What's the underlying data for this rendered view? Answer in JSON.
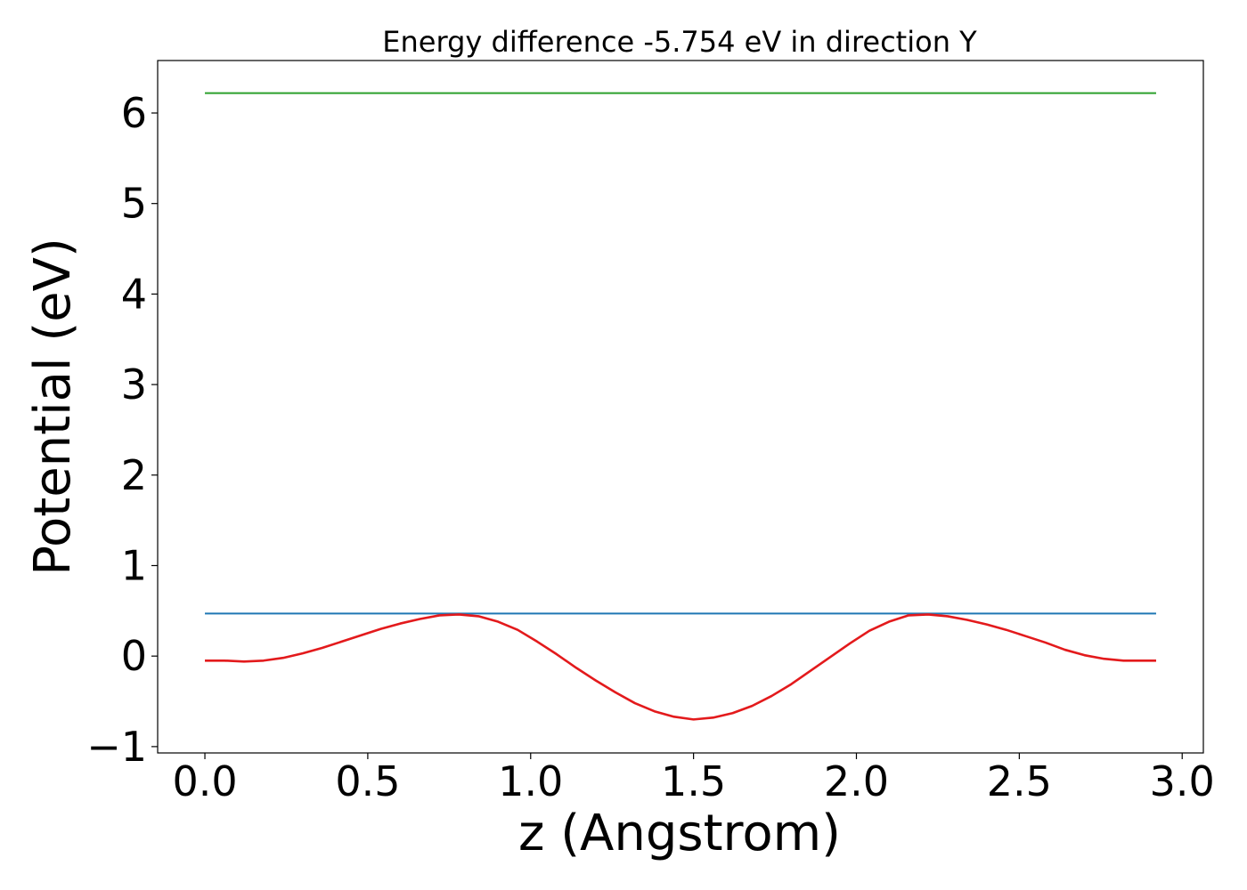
{
  "chart_data": {
    "type": "line",
    "title": "Energy difference -5.754 eV in direction Y",
    "xlabel": "z (Angstrom)",
    "ylabel": "Potential (eV)",
    "xlim": [
      -0.145,
      3.065
    ],
    "ylim": [
      -1.07,
      6.58
    ],
    "xticks": [
      0.0,
      0.5,
      1.0,
      1.5,
      2.0,
      2.5,
      3.0
    ],
    "xtick_labels": [
      "0.0",
      "0.5",
      "1.0",
      "1.5",
      "2.0",
      "2.5",
      "3.0"
    ],
    "yticks": [
      -1,
      0,
      1,
      2,
      3,
      4,
      5,
      6
    ],
    "ytick_labels": [
      "−1",
      "0",
      "1",
      "2",
      "3",
      "4",
      "5",
      "6"
    ],
    "grid": false,
    "series": [
      {
        "color": "#2ca02c",
        "x": [
          0.0,
          2.92
        ],
        "y": [
          6.22,
          6.22
        ]
      },
      {
        "color": "#1f77b4",
        "x": [
          0.0,
          2.92
        ],
        "y": [
          0.47,
          0.47
        ]
      },
      {
        "color": "#e31a1c",
        "x": [
          0.0,
          0.06,
          0.12,
          0.18,
          0.24,
          0.3,
          0.36,
          0.42,
          0.48,
          0.54,
          0.6,
          0.66,
          0.72,
          0.78,
          0.84,
          0.9,
          0.96,
          1.02,
          1.08,
          1.14,
          1.2,
          1.26,
          1.32,
          1.38,
          1.44,
          1.5,
          1.56,
          1.62,
          1.68,
          1.74,
          1.8,
          1.86,
          1.92,
          1.98,
          2.04,
          2.1,
          2.16,
          2.22,
          2.28,
          2.34,
          2.4,
          2.46,
          2.52,
          2.58,
          2.64,
          2.7,
          2.76,
          2.82,
          2.88,
          2.92
        ],
        "y": [
          -0.05,
          -0.05,
          -0.06,
          -0.05,
          -0.02,
          0.03,
          0.09,
          0.16,
          0.23,
          0.3,
          0.36,
          0.41,
          0.45,
          0.46,
          0.44,
          0.38,
          0.29,
          0.16,
          0.02,
          -0.13,
          -0.27,
          -0.4,
          -0.52,
          -0.61,
          -0.67,
          -0.7,
          -0.68,
          -0.63,
          -0.55,
          -0.44,
          -0.31,
          -0.16,
          -0.01,
          0.14,
          0.28,
          0.38,
          0.45,
          0.46,
          0.44,
          0.4,
          0.35,
          0.29,
          0.22,
          0.15,
          0.07,
          0.01,
          -0.03,
          -0.05,
          -0.05,
          -0.05
        ]
      }
    ]
  }
}
